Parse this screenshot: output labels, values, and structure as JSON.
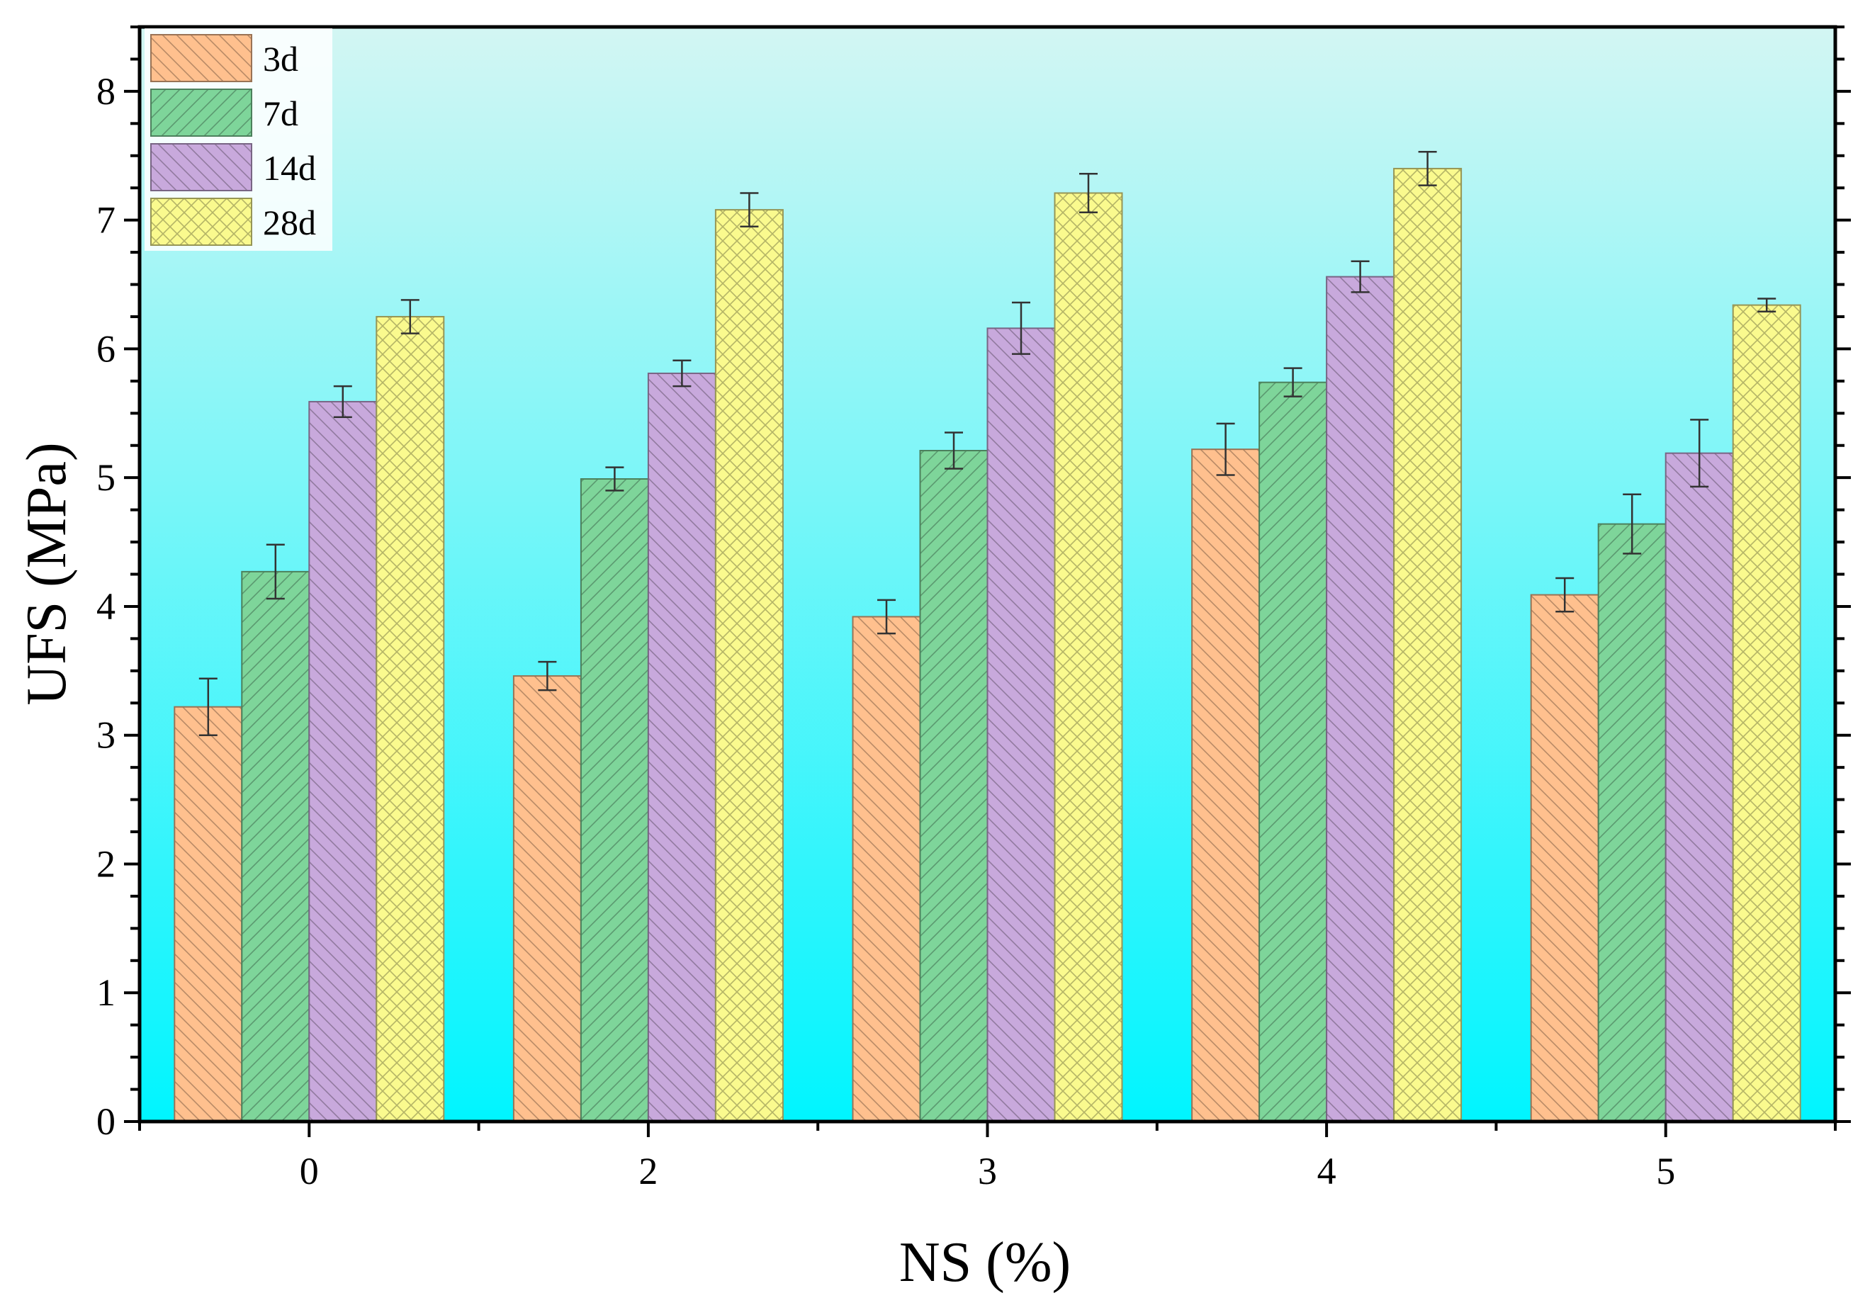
{
  "chart_data": {
    "type": "bar",
    "xlabel": "NS (%)",
    "ylabel": "UFS (MPa)",
    "ylim": [
      0,
      8.5
    ],
    "yticks": [
      0,
      1,
      2,
      3,
      4,
      5,
      6,
      7,
      8
    ],
    "categories": [
      "0",
      "2",
      "3",
      "4",
      "5"
    ],
    "series": [
      {
        "name": "3d",
        "values": [
          3.22,
          3.46,
          3.92,
          5.22,
          4.09
        ],
        "errors": [
          0.22,
          0.11,
          0.13,
          0.2,
          0.13
        ],
        "color": "#FFC08E",
        "pattern": "backslash"
      },
      {
        "name": "7d",
        "values": [
          4.27,
          4.99,
          5.21,
          5.74,
          4.64
        ],
        "errors": [
          0.21,
          0.09,
          0.14,
          0.11,
          0.23
        ],
        "color": "#7ED59A",
        "pattern": "slash"
      },
      {
        "name": "14d",
        "values": [
          5.59,
          5.81,
          6.16,
          6.56,
          5.19
        ],
        "errors": [
          0.12,
          0.1,
          0.2,
          0.12,
          0.26
        ],
        "color": "#C8A9DC",
        "pattern": "backslash"
      },
      {
        "name": "28d",
        "values": [
          6.25,
          7.08,
          7.21,
          7.4,
          6.34
        ],
        "errors": [
          0.13,
          0.13,
          0.15,
          0.13,
          0.05
        ],
        "color": "#FAFA8E",
        "pattern": "cross"
      }
    ],
    "legend": "top-left",
    "background": {
      "top": "#D3F6F3",
      "bottom": "#00F5FF"
    }
  }
}
